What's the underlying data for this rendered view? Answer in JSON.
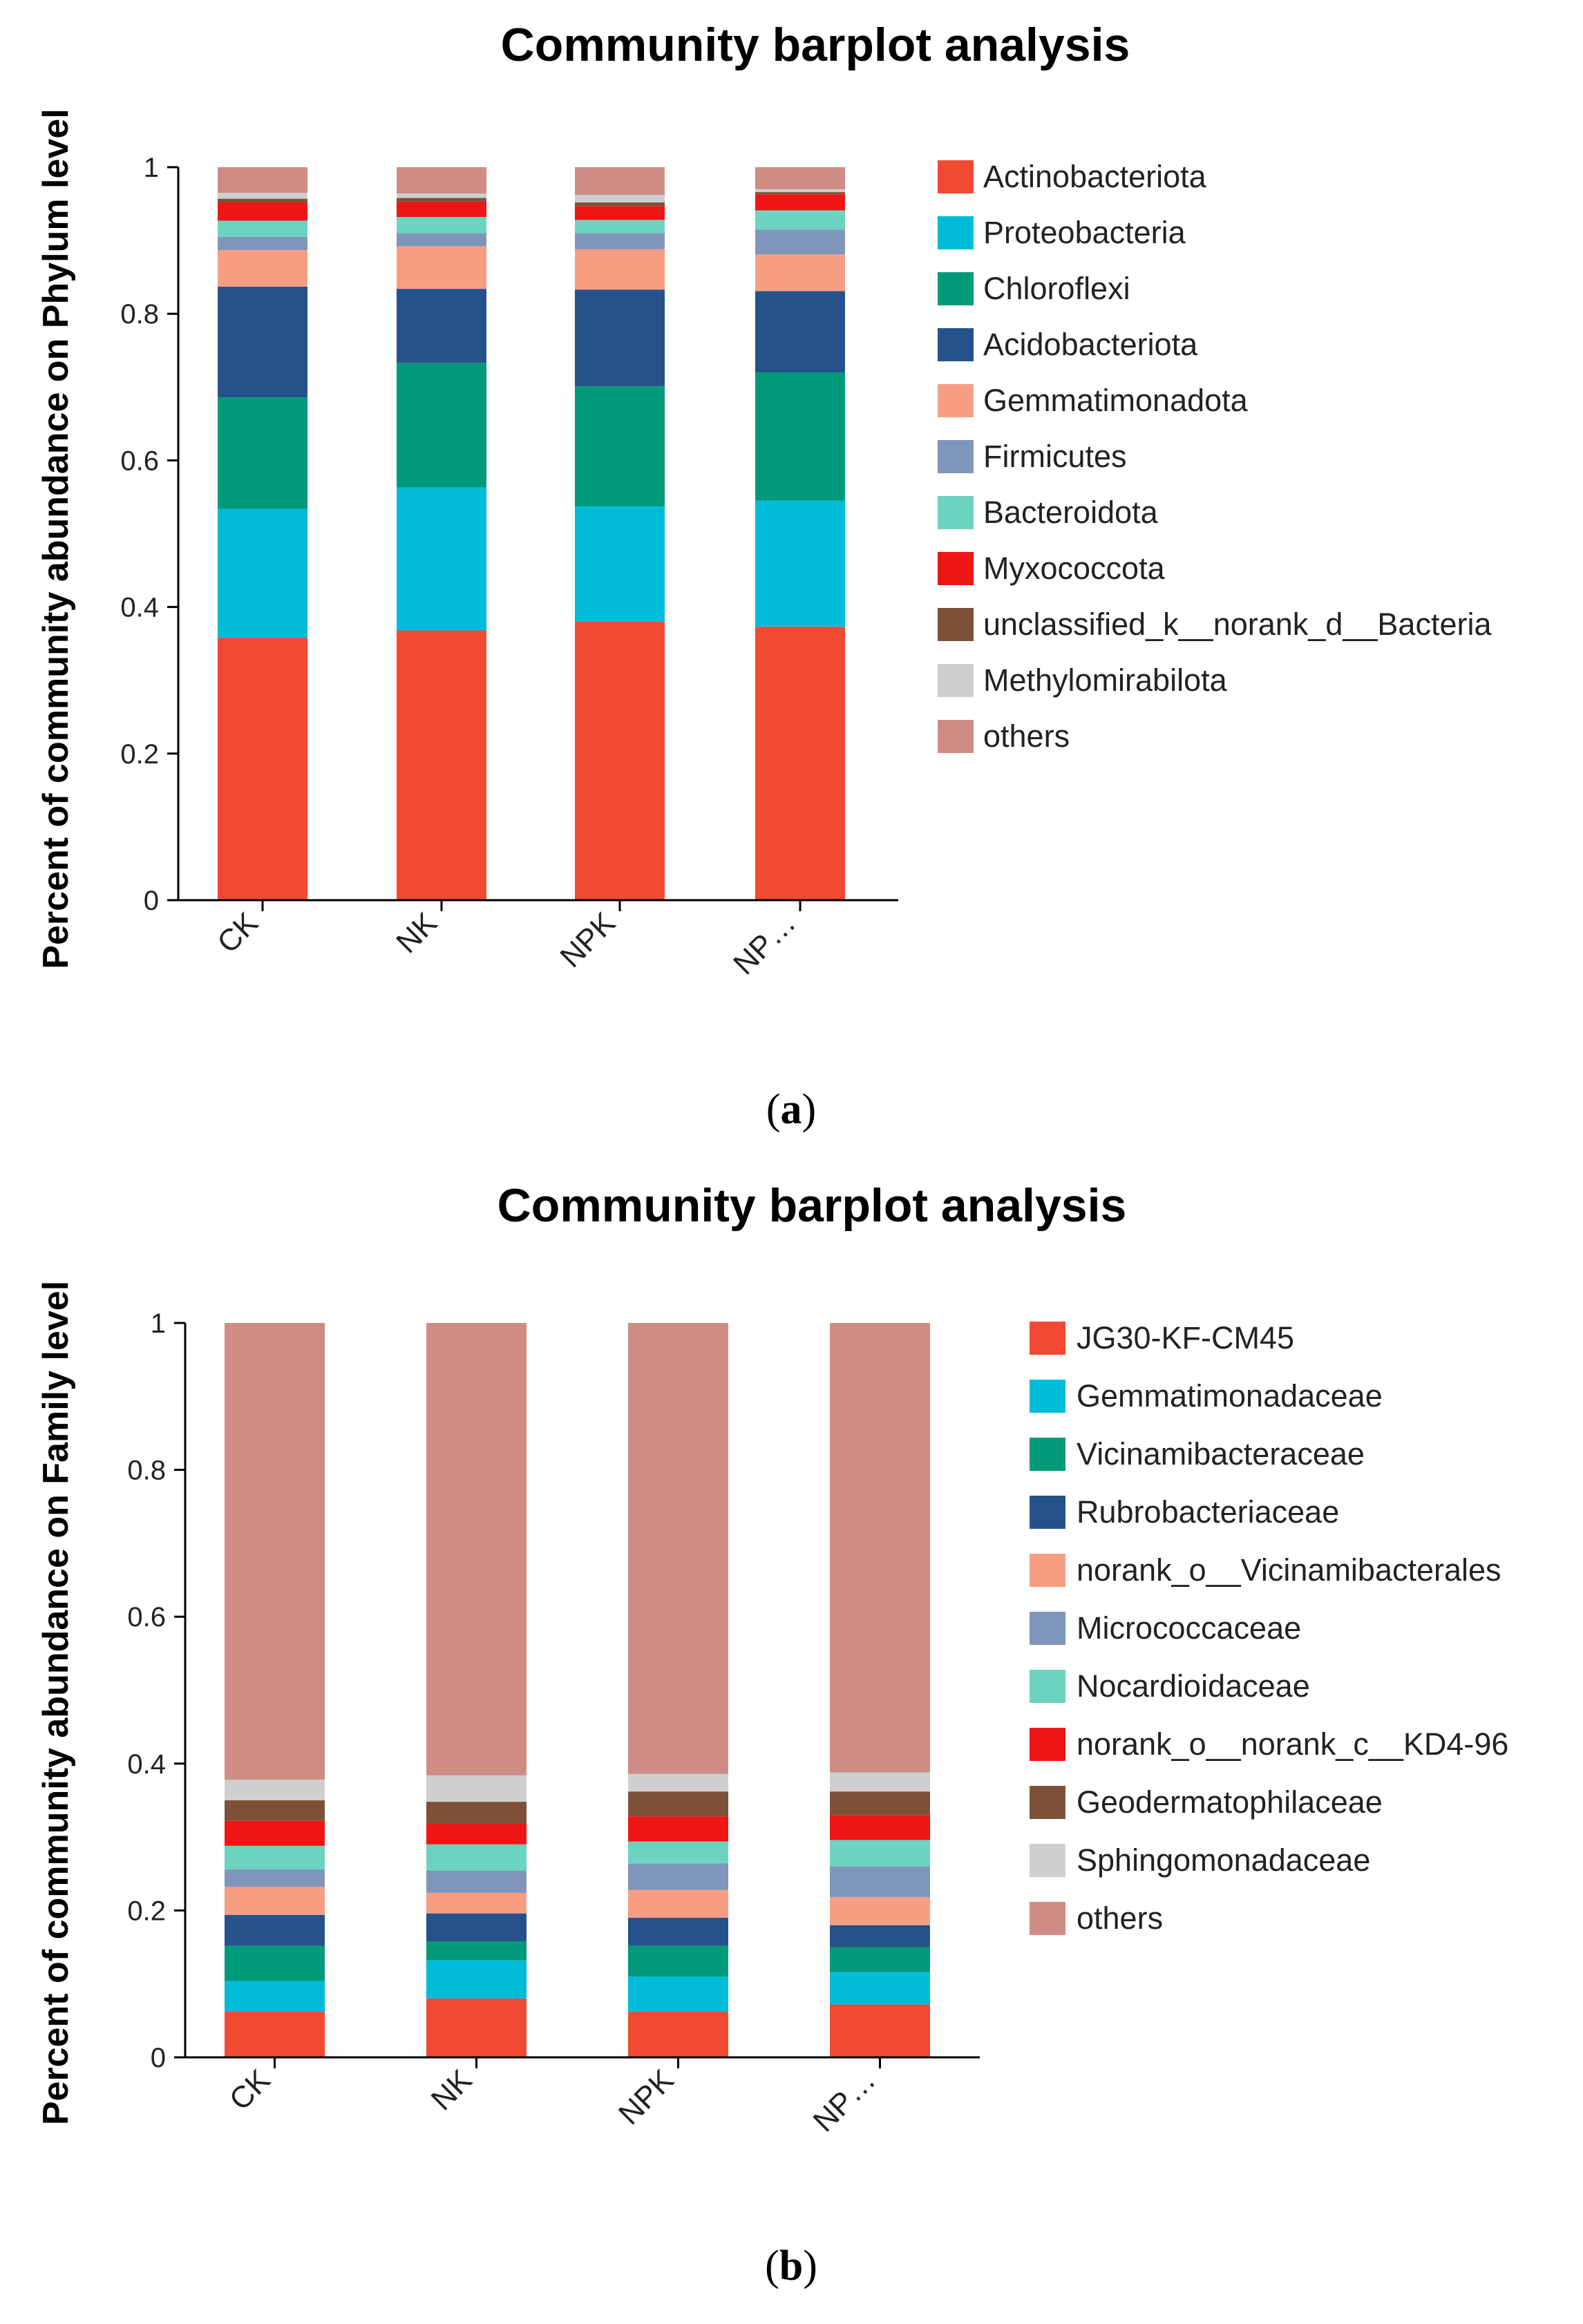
{
  "colors": {
    "Actinobacteriota": "#f24a32",
    "Proteobacteria": "#00bcd8",
    "Chloroflexi": "#00997a",
    "Acidobacteriota": "#25528a",
    "Gemmatimonadota": "#f79e82",
    "Firmicutes": "#8095ba",
    "Bacteroidota": "#6dd3c1",
    "Myxococcota": "#ee1515",
    "unclassified_k__norank_d__Bacteria": "#7d5138",
    "Methylomirabilota": "#cfcfcf",
    "others": "#cf8c84",
    "JG30-KF-CM45": "#f24a32",
    "Gemmatimonadaceae": "#00bcd8",
    "Vicinamibacteraceae": "#00997a",
    "Rubrobacteriaceae": "#25528a",
    "norank_o__Vicinamibacterales": "#f79e82",
    "Micrococcaceae": "#8095ba",
    "Nocardioidaceae": "#6dd3c1",
    "norank_o__norank_c__KD4-96": "#ee1515",
    "Geodermatophilaceae": "#7d5138",
    "Sphingomonadaceae": "#cfcfcf"
  },
  "chart_data": [
    {
      "type": "bar",
      "stacked": true,
      "title": "Community barplot analysis",
      "ylabel": "Percent of community abundance on Phylum level",
      "xlabel": "",
      "ylim": [
        0,
        1
      ],
      "yticks": [
        "0",
        "0.2",
        "0.4",
        "0.6",
        "0.8",
        "1"
      ],
      "categories": [
        "CK",
        "NK",
        "NPK",
        "NP…"
      ],
      "legend_position": "right",
      "series": [
        {
          "name": "Actinobacteriota",
          "values": [
            0.358,
            0.368,
            0.38,
            0.373
          ]
        },
        {
          "name": "Proteobacteria",
          "values": [
            0.176,
            0.195,
            0.157,
            0.172
          ]
        },
        {
          "name": "Chloroflexi",
          "values": [
            0.152,
            0.17,
            0.164,
            0.175
          ]
        },
        {
          "name": "Acidobacteriota",
          "values": [
            0.151,
            0.101,
            0.132,
            0.111
          ]
        },
        {
          "name": "Gemmatimonadota",
          "values": [
            0.05,
            0.058,
            0.055,
            0.05
          ]
        },
        {
          "name": "Firmicutes",
          "values": [
            0.018,
            0.018,
            0.022,
            0.034
          ]
        },
        {
          "name": "Bacteroidota",
          "values": [
            0.022,
            0.022,
            0.018,
            0.026
          ]
        },
        {
          "name": "Myxococcota",
          "values": [
            0.025,
            0.021,
            0.019,
            0.022
          ]
        },
        {
          "name": "unclassified_k__norank_d__Bacteria",
          "values": [
            0.005,
            0.005,
            0.005,
            0.003
          ]
        },
        {
          "name": "Methylomirabilota",
          "values": [
            0.008,
            0.006,
            0.01,
            0.004
          ]
        },
        {
          "name": "others",
          "values": [
            0.035,
            0.036,
            0.038,
            0.03
          ]
        }
      ],
      "caption": "a"
    },
    {
      "type": "bar",
      "stacked": true,
      "title": "Community barplot analysis",
      "ylabel": "Percent of community abundance on Family level",
      "xlabel": "",
      "ylim": [
        0,
        1
      ],
      "yticks": [
        "0",
        "0.2",
        "0.4",
        "0.6",
        "0.8",
        "1"
      ],
      "categories": [
        "CK",
        "NK",
        "NPK",
        "NP…"
      ],
      "legend_position": "right",
      "series": [
        {
          "name": "JG30-KF-CM45",
          "values": [
            0.062,
            0.08,
            0.062,
            0.072
          ]
        },
        {
          "name": "Gemmatimonadaceae",
          "values": [
            0.042,
            0.052,
            0.048,
            0.044
          ]
        },
        {
          "name": "Vicinamibacteraceae",
          "values": [
            0.048,
            0.026,
            0.042,
            0.034
          ]
        },
        {
          "name": "Rubrobacteriaceae",
          "values": [
            0.042,
            0.038,
            0.038,
            0.03
          ]
        },
        {
          "name": "norank_o__Vicinamibacterales",
          "values": [
            0.038,
            0.028,
            0.038,
            0.038
          ]
        },
        {
          "name": "Micrococcaceae",
          "values": [
            0.024,
            0.03,
            0.036,
            0.042
          ]
        },
        {
          "name": "Nocardioidaceae",
          "values": [
            0.032,
            0.036,
            0.03,
            0.036
          ]
        },
        {
          "name": "norank_o__norank_c__KD4-96",
          "values": [
            0.034,
            0.028,
            0.034,
            0.034
          ]
        },
        {
          "name": "Geodermatophilaceae",
          "values": [
            0.028,
            0.03,
            0.034,
            0.032
          ]
        },
        {
          "name": "Sphingomonadaceae",
          "values": [
            0.028,
            0.036,
            0.024,
            0.026
          ]
        },
        {
          "name": "others",
          "values": [
            0.622,
            0.616,
            0.614,
            0.612
          ]
        }
      ],
      "caption": "b"
    }
  ]
}
